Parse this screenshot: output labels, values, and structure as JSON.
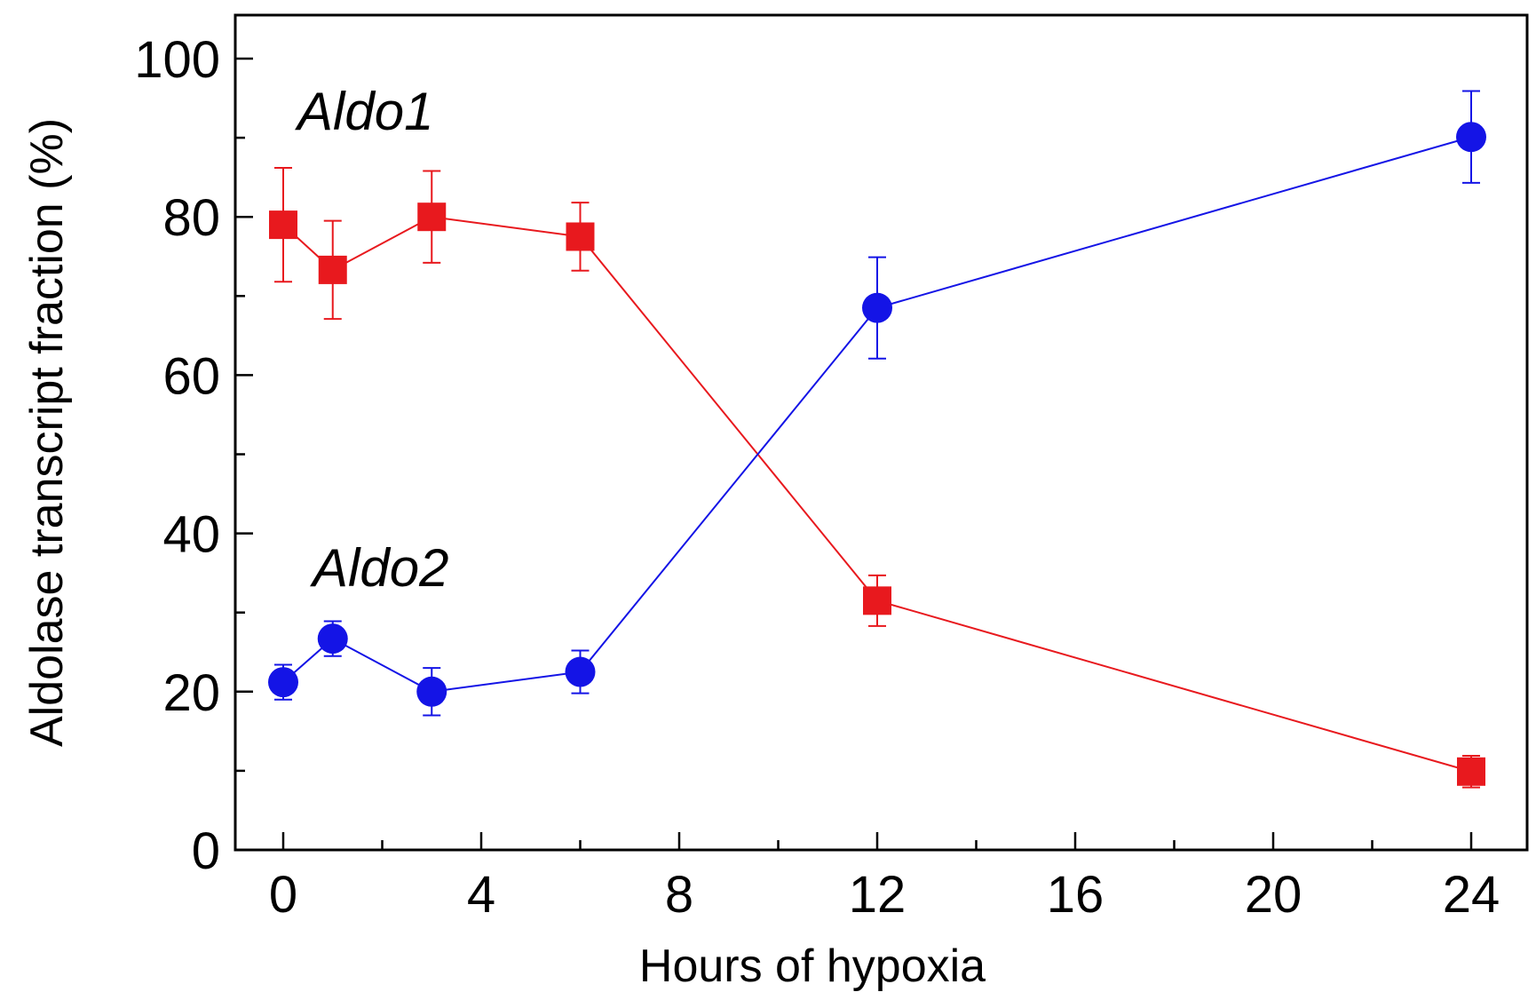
{
  "chart_data": {
    "type": "line",
    "title": "",
    "xlabel": "Hours of hypoxia",
    "ylabel": "Aldolase transcript fraction (%)",
    "xlim": [
      -1,
      26
    ],
    "ylim": [
      0,
      105
    ],
    "x_ticks_major": [
      0,
      4,
      8,
      12,
      16,
      20,
      24
    ],
    "x_ticks_minor": [
      2,
      6,
      10,
      14,
      18,
      22
    ],
    "y_ticks_major": [
      0,
      20,
      40,
      60,
      80,
      100
    ],
    "y_ticks_minor": [
      10,
      30,
      50,
      70,
      90
    ],
    "grid": false,
    "legend": "none",
    "series": [
      {
        "name": "Aldo1",
        "color": "#e8191e",
        "marker": "square",
        "x": [
          0,
          1,
          3,
          6,
          12,
          24
        ],
        "y": [
          79,
          73.3,
          80,
          77.5,
          31.5,
          9.9
        ],
        "yerr": [
          7.2,
          6.2,
          5.8,
          4.3,
          3.2,
          2.0
        ]
      },
      {
        "name": "Aldo2",
        "color": "#1414e6",
        "marker": "circle",
        "x": [
          0,
          1,
          3,
          6,
          12,
          24
        ],
        "y": [
          21.2,
          26.7,
          20.0,
          22.5,
          68.5,
          90.1
        ],
        "yerr": [
          2.2,
          2.2,
          3.0,
          2.7,
          6.4,
          5.8
        ]
      }
    ],
    "annotations": [
      {
        "text": "Aldo1",
        "series": "Aldo1"
      },
      {
        "text": "Aldo2",
        "series": "Aldo2"
      }
    ]
  }
}
